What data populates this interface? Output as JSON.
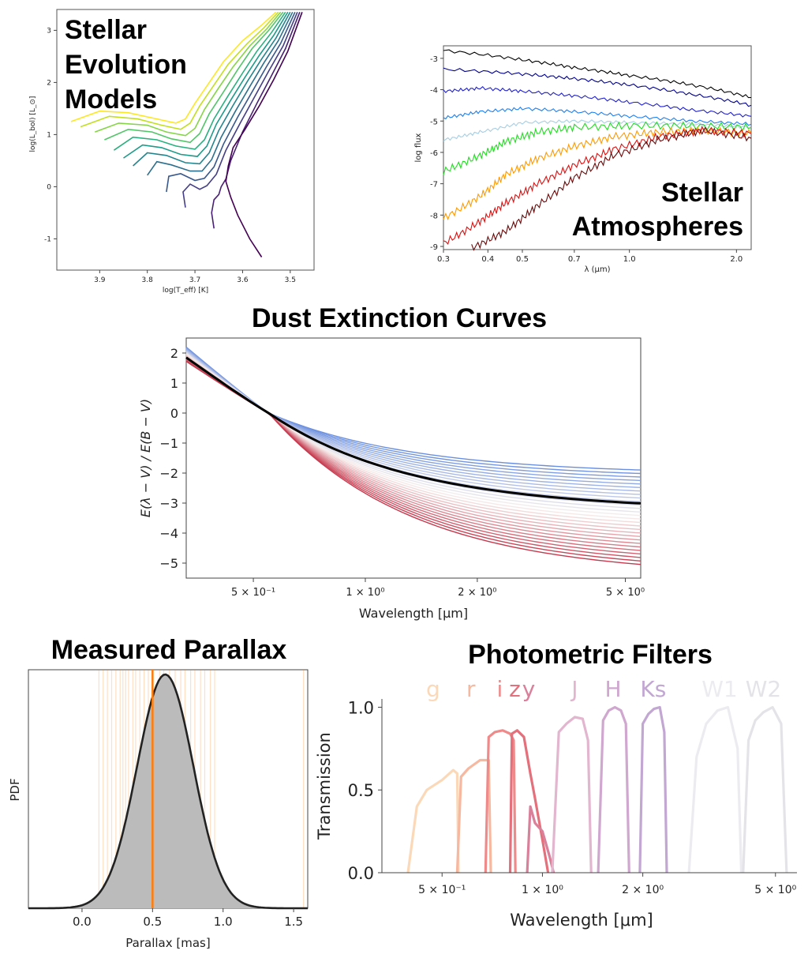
{
  "panels": {
    "stellar_evolution": {
      "title_lines": [
        "Stellar",
        "Evolution",
        "Models"
      ]
    },
    "stellar_atmospheres": {
      "title_lines": [
        "Stellar",
        "Atmospheres"
      ]
    },
    "dust": {
      "title": "Dust Extinction Curves"
    },
    "parallax": {
      "title": "Measured Parallax"
    },
    "filters": {
      "title": "Photometric Filters"
    }
  },
  "chart_data": [
    {
      "type": "line",
      "id": "hr",
      "xlabel": "log(T_eff) [K]",
      "ylabel": "log(L_bol) [L_⊙]",
      "xlim": [
        3.99,
        3.45
      ],
      "ylim": [
        -1.6,
        3.4
      ],
      "x_ticks": [
        "3.9",
        "3.8",
        "3.7",
        "3.6",
        "3.5"
      ],
      "y_ticks": [
        "-1",
        "0",
        "1",
        "2",
        "3"
      ],
      "track_colors": [
        "#fde725",
        "#c2df23",
        "#86d549",
        "#52c569",
        "#2ab07f",
        "#1e9b8a",
        "#25858e",
        "#2d708e",
        "#38588c",
        "#433e85",
        "#482173",
        "#440154"
      ],
      "tracks": [
        {
          "x": [
            3.96,
            3.9,
            3.84,
            3.78,
            3.74,
            3.72,
            3.7,
            3.67,
            3.64,
            3.6,
            3.56,
            3.53
          ],
          "y": [
            1.25,
            1.45,
            1.42,
            1.3,
            1.22,
            1.3,
            1.6,
            2.0,
            2.4,
            2.8,
            3.1,
            3.35
          ]
        },
        {
          "x": [
            3.94,
            3.88,
            3.82,
            3.77,
            3.73,
            3.71,
            3.69,
            3.66,
            3.63,
            3.59,
            3.555,
            3.525
          ],
          "y": [
            1.15,
            1.35,
            1.3,
            1.18,
            1.1,
            1.22,
            1.55,
            1.95,
            2.35,
            2.75,
            3.05,
            3.35
          ]
        },
        {
          "x": [
            3.91,
            3.86,
            3.8,
            3.76,
            3.72,
            3.7,
            3.68,
            3.65,
            3.62,
            3.585,
            3.55,
            3.52
          ],
          "y": [
            1.05,
            1.22,
            1.18,
            1.05,
            0.98,
            1.12,
            1.48,
            1.9,
            2.3,
            2.7,
            3.02,
            3.35
          ]
        },
        {
          "x": [
            3.89,
            3.84,
            3.79,
            3.75,
            3.71,
            3.69,
            3.67,
            3.64,
            3.61,
            3.58,
            3.545,
            3.515
          ],
          "y": [
            0.9,
            1.1,
            1.05,
            0.92,
            0.85,
            1.02,
            1.4,
            1.82,
            2.25,
            2.65,
            3.0,
            3.35
          ]
        },
        {
          "x": [
            3.87,
            3.83,
            3.78,
            3.74,
            3.7,
            3.68,
            3.66,
            3.63,
            3.6,
            3.57,
            3.54,
            3.51
          ],
          "y": [
            0.7,
            0.95,
            0.9,
            0.78,
            0.72,
            0.9,
            1.3,
            1.75,
            2.18,
            2.6,
            2.95,
            3.35
          ]
        },
        {
          "x": [
            3.85,
            3.81,
            3.77,
            3.73,
            3.695,
            3.675,
            3.655,
            3.625,
            3.595,
            3.565,
            3.535,
            3.505
          ],
          "y": [
            0.55,
            0.8,
            0.75,
            0.62,
            0.58,
            0.78,
            1.2,
            1.66,
            2.1,
            2.52,
            2.9,
            3.35
          ]
        },
        {
          "x": [
            3.83,
            3.8,
            3.76,
            3.72,
            3.69,
            3.67,
            3.65,
            3.62,
            3.59,
            3.56,
            3.53,
            3.5
          ],
          "y": [
            0.4,
            0.65,
            0.6,
            0.46,
            0.44,
            0.65,
            1.08,
            1.56,
            2.02,
            2.45,
            2.85,
            3.35
          ]
        },
        {
          "x": [
            3.8,
            3.78,
            3.75,
            3.71,
            3.685,
            3.665,
            3.645,
            3.615,
            3.585,
            3.555,
            3.525,
            3.495
          ],
          "y": [
            0.22,
            0.48,
            0.42,
            0.3,
            0.3,
            0.52,
            0.95,
            1.45,
            1.92,
            2.38,
            2.8,
            3.35
          ]
        },
        {
          "x": [
            3.76,
            3.755,
            3.73,
            3.7,
            3.68,
            3.66,
            3.64,
            3.61,
            3.58,
            3.55,
            3.52,
            3.49
          ],
          "y": [
            -0.1,
            0.2,
            0.25,
            0.12,
            0.16,
            0.38,
            0.82,
            1.34,
            1.82,
            2.3,
            2.75,
            3.35
          ]
        },
        {
          "x": [
            3.72,
            3.725,
            3.71,
            3.69,
            3.675,
            3.655,
            3.635,
            3.605,
            3.575,
            3.545,
            3.515,
            3.485
          ],
          "y": [
            -0.4,
            -0.1,
            0.05,
            -0.05,
            0.02,
            0.24,
            0.7,
            1.22,
            1.72,
            2.22,
            2.7,
            3.35
          ]
        },
        {
          "x": [
            3.66,
            3.665,
            3.66,
            3.65,
            3.645,
            3.635,
            3.625,
            3.6,
            3.57,
            3.54,
            3.51,
            3.48
          ],
          "y": [
            -0.8,
            -0.5,
            -0.25,
            -0.15,
            0.0,
            0.15,
            0.5,
            1.05,
            1.6,
            2.12,
            2.65,
            3.35
          ]
        },
        {
          "x": [
            3.56,
            3.585,
            3.61,
            3.625,
            3.635,
            3.63,
            3.62,
            3.595,
            3.565,
            3.535,
            3.505,
            3.475
          ],
          "y": [
            -1.35,
            -1.0,
            -0.55,
            -0.2,
            0.1,
            0.4,
            0.75,
            1.1,
            1.55,
            2.05,
            2.6,
            3.35
          ]
        }
      ]
    },
    {
      "type": "line",
      "id": "atmospheres",
      "xlabel": "λ (μm)",
      "ylabel": "log flux",
      "x_scale": "log",
      "xlim": [
        0.3,
        2.2
      ],
      "ylim": [
        -9.1,
        -2.6
      ],
      "x_ticks": [
        {
          "v": 0.3,
          "l": "0.3"
        },
        {
          "v": 0.4,
          "l": "0.4"
        },
        {
          "v": 0.5,
          "l": "0.5"
        },
        {
          "v": 0.7,
          "l": "0.7"
        },
        {
          "v": 1.0,
          "l": "1.0"
        },
        {
          "v": 2.0,
          "l": "2.0"
        }
      ],
      "y_ticks": [
        "-3",
        "-4",
        "-5",
        "-6",
        "-7",
        "-8",
        "-9"
      ],
      "spectra": [
        {
          "color": "#000000",
          "x": [
            0.3,
            0.5,
            0.7,
            1.0,
            1.5,
            2.2
          ],
          "y": [
            -2.75,
            -3.05,
            -3.3,
            -3.55,
            -3.85,
            -4.25
          ]
        },
        {
          "color": "#00008b",
          "x": [
            0.3,
            0.5,
            0.7,
            1.0,
            1.5,
            2.2
          ],
          "y": [
            -3.35,
            -3.5,
            -3.65,
            -3.85,
            -4.15,
            -4.5
          ]
        },
        {
          "color": "#2222cc",
          "x": [
            0.3,
            0.38,
            0.5,
            0.7,
            1.0,
            1.5,
            2.2
          ],
          "y": [
            -4.05,
            -3.95,
            -4.05,
            -4.2,
            -4.4,
            -4.65,
            -4.85
          ]
        },
        {
          "color": "#1e80f0",
          "x": [
            0.3,
            0.38,
            0.5,
            0.7,
            1.0,
            1.5,
            2.2
          ],
          "y": [
            -4.9,
            -4.7,
            -4.6,
            -4.7,
            -4.85,
            -5.0,
            -5.1
          ]
        },
        {
          "color": "#a6cee3",
          "x": [
            0.3,
            0.38,
            0.5,
            0.7,
            1.0,
            1.5,
            2.2
          ],
          "y": [
            -5.6,
            -5.35,
            -5.05,
            -5.0,
            -5.05,
            -5.1,
            -5.2
          ]
        },
        {
          "color": "#22dd22",
          "x": [
            0.3,
            0.38,
            0.45,
            0.55,
            0.7,
            1.0,
            1.5,
            2.2
          ],
          "y": [
            -6.6,
            -6.1,
            -5.65,
            -5.35,
            -5.2,
            -5.15,
            -5.15,
            -5.2
          ]
        },
        {
          "color": "#ff9a00",
          "x": [
            0.3,
            0.38,
            0.45,
            0.55,
            0.7,
            0.9,
            1.2,
            1.6,
            2.2
          ],
          "y": [
            -8.1,
            -7.4,
            -6.7,
            -6.2,
            -5.8,
            -5.5,
            -5.35,
            -5.3,
            -5.4
          ]
        },
        {
          "color": "#dd1111",
          "x": [
            0.3,
            0.38,
            0.45,
            0.55,
            0.7,
            0.9,
            1.2,
            1.6,
            2.2
          ],
          "y": [
            -8.9,
            -8.2,
            -7.6,
            -7.0,
            -6.4,
            -5.9,
            -5.5,
            -5.3,
            -5.4
          ]
        },
        {
          "color": "#6b0a0a",
          "x": [
            0.36,
            0.45,
            0.55,
            0.7,
            0.9,
            1.2,
            1.6,
            2.2
          ],
          "y": [
            -9.05,
            -8.5,
            -7.7,
            -6.8,
            -6.1,
            -5.6,
            -5.3,
            -5.55
          ]
        }
      ]
    },
    {
      "type": "line",
      "id": "dust",
      "xlabel": "Wavelength [μm]",
      "ylabel": "E(λ − V) / E(B − V)",
      "x_scale": "log",
      "xlim": [
        0.33,
        5.5
      ],
      "ylim": [
        -5.5,
        2.5
      ],
      "x_ticks": [
        {
          "v": 0.5,
          "l": "5 × 10⁻¹"
        },
        {
          "v": 1.0,
          "l": "1 × 10⁰"
        },
        {
          "v": 2.0,
          "l": "2 × 10⁰"
        },
        {
          "v": 5.0,
          "l": "5 × 10⁰"
        }
      ],
      "y_ticks": [
        2,
        1,
        0,
        -1,
        -2,
        -3,
        -4,
        -5
      ],
      "curve_count": 28,
      "asymptote_range": [
        -2.05,
        -5.45
      ],
      "blue_end_range": [
        2.2,
        1.72
      ],
      "highlight": {
        "asymptote": -3.25,
        "color": "#000000"
      },
      "colormap": [
        "#6a8fe0",
        "#f7f0ee",
        "#c63a4e"
      ]
    },
    {
      "type": "area",
      "id": "parallax",
      "xlabel": "Parallax [mas]",
      "ylabel": "PDF",
      "xlim": [
        -0.38,
        1.6
      ],
      "x_ticks": [
        "0.0",
        "0.5",
        "1.0",
        "1.5"
      ],
      "pdf": {
        "mean": 0.59,
        "sigma": 0.2
      },
      "measured": 0.5,
      "samples": [
        0.12,
        0.15,
        0.18,
        0.21,
        0.24,
        0.27,
        0.29,
        0.31,
        0.33,
        0.36,
        0.38,
        0.41,
        0.44,
        0.47,
        0.55,
        0.58,
        0.62,
        0.66,
        0.7,
        0.73,
        0.77,
        0.8,
        0.84,
        0.87,
        0.91,
        0.94,
        1.57
      ],
      "fill_color": "#bbbbbb",
      "line_color": "#222222",
      "marker_color": "#ff7f0e"
    },
    {
      "type": "area",
      "id": "filters",
      "xlabel": "Wavelength [μm]",
      "ylabel": "Transmission",
      "x_scale": "log",
      "xlim": [
        0.33,
        5.8
      ],
      "ylim": [
        0,
        1.05
      ],
      "x_ticks": [
        {
          "v": 0.5,
          "l": "5 × 10⁻¹"
        },
        {
          "v": 1.0,
          "l": "1 × 10⁰"
        },
        {
          "v": 2.0,
          "l": "2 × 10⁰"
        },
        {
          "v": 5.0,
          "l": "5 × 10⁰"
        }
      ],
      "y_ticks": [
        "0.0",
        "0.5",
        "1.0"
      ],
      "filters": [
        {
          "name": "g",
          "color": "#fbd9b8",
          "x": [
            0.395,
            0.42,
            0.45,
            0.5,
            0.54,
            0.555,
            0.56
          ],
          "y": [
            0.0,
            0.4,
            0.5,
            0.56,
            0.62,
            0.6,
            0.0
          ]
        },
        {
          "name": "r",
          "color": "#f7b8a0",
          "x": [
            0.555,
            0.57,
            0.6,
            0.65,
            0.69,
            0.7
          ],
          "y": [
            0.0,
            0.58,
            0.63,
            0.68,
            0.68,
            0.0
          ]
        },
        {
          "name": "i",
          "color": "#ef8a8a",
          "x": [
            0.675,
            0.69,
            0.72,
            0.76,
            0.8,
            0.82,
            0.83
          ],
          "y": [
            0.0,
            0.82,
            0.85,
            0.86,
            0.84,
            0.8,
            0.0
          ]
        },
        {
          "name": "z",
          "color": "#e4707c",
          "x": [
            0.8,
            0.81,
            0.84,
            0.88,
            0.92,
            0.95,
            1.0,
            1.04
          ],
          "y": [
            0.0,
            0.84,
            0.86,
            0.82,
            0.6,
            0.45,
            0.2,
            0.0
          ]
        },
        {
          "name": "y",
          "color": "#d9809a",
          "x": [
            0.9,
            0.92,
            0.95,
            1.0,
            1.05,
            1.08
          ],
          "y": [
            0.0,
            0.4,
            0.3,
            0.25,
            0.1,
            0.0
          ]
        },
        {
          "name": "J",
          "color": "#e3b6cf",
          "x": [
            1.07,
            1.12,
            1.18,
            1.25,
            1.32,
            1.37,
            1.4
          ],
          "y": [
            0.0,
            0.85,
            0.9,
            0.94,
            0.93,
            0.8,
            0.0
          ]
        },
        {
          "name": "H",
          "color": "#cfa7cf",
          "x": [
            1.47,
            1.52,
            1.58,
            1.65,
            1.72,
            1.78,
            1.82
          ],
          "y": [
            0.0,
            0.92,
            0.98,
            1.0,
            0.98,
            0.9,
            0.0
          ]
        },
        {
          "name": "Ks",
          "color": "#c2a7d3",
          "x": [
            1.96,
            2.0,
            2.08,
            2.16,
            2.25,
            2.32,
            2.36
          ],
          "y": [
            0.0,
            0.9,
            0.96,
            0.99,
            1.0,
            0.85,
            0.0
          ]
        },
        {
          "name": "W1",
          "color": "#ececf0",
          "x": [
            2.75,
            2.9,
            3.1,
            3.35,
            3.6,
            3.85,
            3.95
          ],
          "y": [
            0.0,
            0.7,
            0.9,
            0.98,
            1.0,
            0.75,
            0.0
          ]
        },
        {
          "name": "W2",
          "color": "#e4e4e8",
          "x": [
            4.0,
            4.15,
            4.35,
            4.6,
            4.9,
            5.2,
            5.4
          ],
          "y": [
            0.0,
            0.8,
            0.92,
            0.97,
            1.0,
            0.9,
            0.0
          ]
        }
      ]
    }
  ]
}
